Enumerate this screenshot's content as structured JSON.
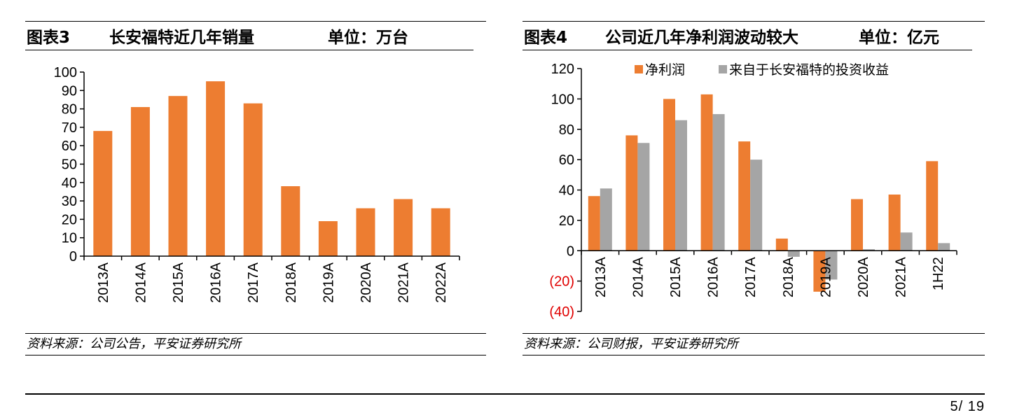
{
  "left": {
    "header": {
      "label": "图表3",
      "title": "长安福特近几年销量",
      "unit": "单位：万台"
    },
    "source": "资料来源：公司公告，平安证券研究所"
  },
  "right": {
    "header": {
      "label": "图表4",
      "title": "公司近几年净利润波动较大",
      "unit": "单位：亿元"
    },
    "source": "资料来源：公司财报，平安证券研究所"
  },
  "page": {
    "number": "5/ 19"
  },
  "colors": {
    "orange": "#ED7D31",
    "gray": "#A5A5A5",
    "negative_tick": "#E00000"
  },
  "chart_data": [
    {
      "type": "bar",
      "categories": [
        "2013A",
        "2014A",
        "2015A",
        "2016A",
        "2017A",
        "2018A",
        "2019A",
        "2020A",
        "2021A",
        "2022A"
      ],
      "series": [
        {
          "values": [
            68,
            81,
            87,
            95,
            83,
            38,
            19,
            26,
            31,
            26
          ]
        }
      ],
      "ylim": [
        0,
        100
      ],
      "yticks": [
        "0",
        "10",
        "20",
        "30",
        "40",
        "50",
        "60",
        "70",
        "80",
        "90",
        "100"
      ],
      "grid": false
    },
    {
      "type": "bar",
      "categories": [
        "2013A",
        "2014A",
        "2015A",
        "2016A",
        "2017A",
        "2018A",
        "2019A",
        "2020A",
        "2021A",
        "1H22"
      ],
      "series": [
        {
          "name": "净利润",
          "values": [
            36,
            76,
            100,
            103,
            72,
            8,
            -27,
            34,
            37,
            59
          ]
        },
        {
          "name": "来自于长安福特的投资收益",
          "values": [
            41,
            71,
            86,
            90,
            60,
            -4,
            -19,
            1,
            12,
            5
          ]
        }
      ],
      "ylim": [
        -40,
        120
      ],
      "yticks": [
        "(40)",
        "(20)",
        "0",
        "20",
        "40",
        "60",
        "80",
        "100",
        "120"
      ],
      "legend": "top",
      "grid": false
    }
  ]
}
